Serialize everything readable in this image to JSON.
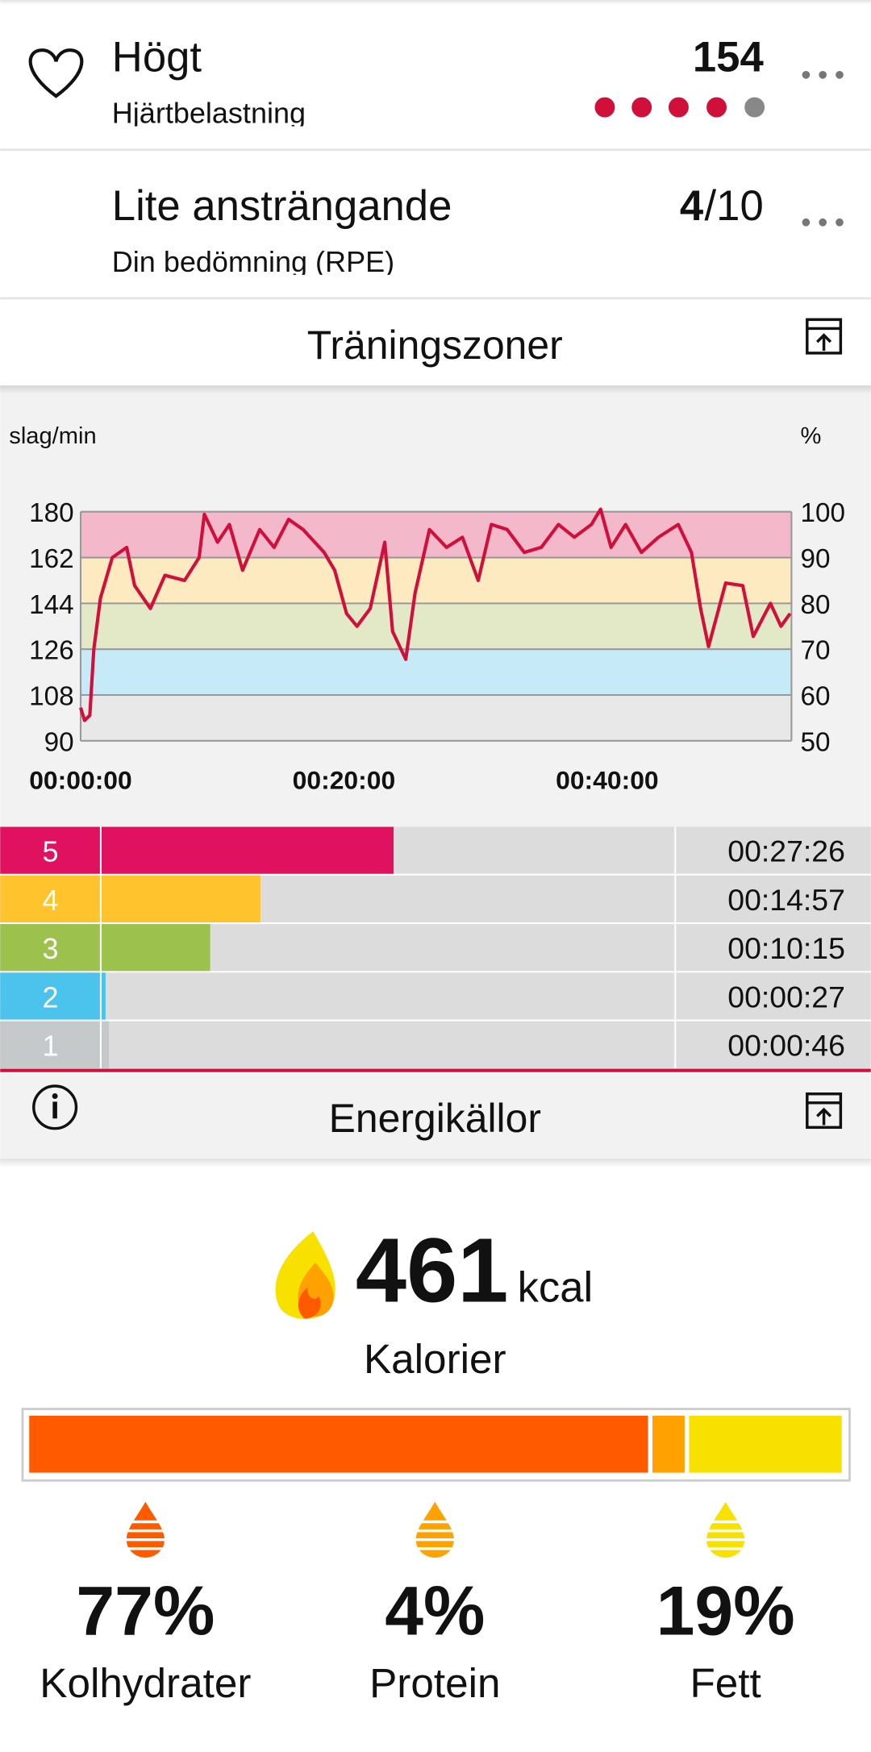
{
  "metrics": [
    {
      "title": "Högt",
      "subtitle": "Hjärtbelastning",
      "value": 154
    },
    {
      "title": "Lite ansträngande",
      "subtitle": "Din bedömning (RPE)",
      "value": 4,
      "suffix": "/10"
    }
  ],
  "zones_header": "Träningszoner",
  "energy_header": "Energikällor",
  "chart_data": [
    {
      "type": "line",
      "y_label": "slag/min",
      "y2_label": "%",
      "x": [
        0,
        0.3,
        0.7,
        1.0,
        1.5,
        2.4,
        3.5,
        4.1,
        5.3,
        6.4,
        7.9,
        9.0,
        9.4,
        10.4,
        11.3,
        12.3,
        13.6,
        14.7,
        15.8,
        16.9,
        18.5,
        19.3,
        20.2,
        21.0,
        22.0,
        23.1,
        23.7,
        24.7,
        25.4,
        26.5,
        27.8,
        29.0,
        30.2,
        31.2,
        32.4,
        33.7,
        35.0,
        36.3,
        37.5,
        38.8,
        39.5,
        40.3,
        41.4,
        42.6,
        43.9,
        45.4,
        46.4,
        47.1,
        47.7,
        49.0,
        50.3,
        51.1,
        52.4,
        53.2,
        53.9
      ],
      "values": [
        103,
        98,
        100,
        126,
        146,
        162,
        166,
        151,
        142,
        155,
        153,
        162,
        179,
        168,
        175,
        157,
        173,
        166,
        177,
        173,
        164,
        157,
        140,
        135,
        142,
        168,
        133,
        122,
        148,
        173,
        166,
        170,
        153,
        175,
        173,
        164,
        166,
        175,
        170,
        175,
        181,
        166,
        175,
        164,
        170,
        175,
        164,
        142,
        127,
        152,
        151,
        131,
        144,
        135,
        140
      ],
      "color": "#d0103a",
      "xlim": [
        0,
        54
      ],
      "xticks": [
        {
          "value": 0,
          "label": "00:00:00"
        },
        {
          "value": 20,
          "label": "00:20:00"
        },
        {
          "value": 40,
          "label": "00:40:00"
        }
      ],
      "ylim": [
        90,
        180
      ],
      "yticks": [
        90,
        108,
        126,
        144,
        162,
        180
      ],
      "y2lim": [
        50,
        100
      ],
      "y2ticks": [
        50,
        60,
        70,
        80,
        90,
        100
      ],
      "band_colors": [
        "#e8e8e8",
        "#c7eaf8",
        "#e3e8c7",
        "#fdeac0",
        "#f4b8cb"
      ],
      "grid": true
    },
    {
      "type": "bar",
      "orientation": "horizontal",
      "categories": [
        "5",
        "4",
        "3",
        "2",
        "1"
      ],
      "values": [
        1646,
        897,
        615,
        27,
        46
      ],
      "value_labels": [
        "00:27:26",
        "00:14:57",
        "00:10:15",
        "00:00:27",
        "00:00:46"
      ],
      "colors": [
        "#e0115f",
        "#fec32d",
        "#9dc14d",
        "#4cc3ec",
        "#c6c9c9"
      ],
      "xlim": [
        0,
        3229
      ]
    },
    {
      "type": "stacked-bar",
      "calories": 461,
      "unit": "kcal",
      "calories_label": "Kalorier",
      "categories": [
        "Kolhydrater",
        "Protein",
        "Fett"
      ],
      "values": [
        77,
        4,
        19
      ],
      "value_labels": [
        "77%",
        "4%",
        "19%"
      ],
      "colors": [
        "#ff5a00",
        "#ffa100",
        "#f8e000"
      ]
    }
  ]
}
